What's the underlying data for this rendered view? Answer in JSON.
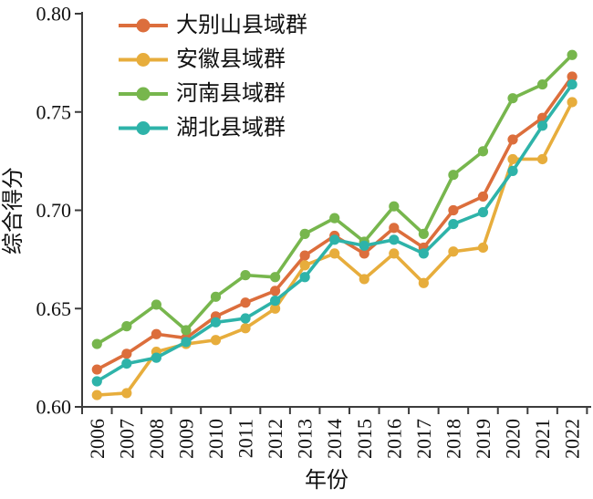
{
  "chart_data": {
    "type": "line",
    "title": "",
    "xlabel": "年份",
    "ylabel": "综合得分",
    "x": [
      "2006",
      "2007",
      "2008",
      "2009",
      "2010",
      "2011",
      "2012",
      "2013",
      "2014",
      "2015",
      "2016",
      "2017",
      "2018",
      "2019",
      "2020",
      "2021",
      "2022"
    ],
    "ylim": [
      0.6,
      0.8
    ],
    "yticks": [
      "0.60",
      "0.65",
      "0.70",
      "0.75",
      "0.80"
    ],
    "grid": false,
    "legend_position": "upper-left-inside",
    "marker": "circle",
    "axis_color": "#3c3c3c",
    "series": [
      {
        "name": "大别山县域群",
        "color": "#dc6e3c",
        "values": [
          0.619,
          0.627,
          0.637,
          0.635,
          0.646,
          0.653,
          0.659,
          0.677,
          0.687,
          0.678,
          0.691,
          0.681,
          0.7,
          0.707,
          0.736,
          0.747,
          0.768
        ]
      },
      {
        "name": "安徽县域群",
        "color": "#e7ad3c",
        "values": [
          0.606,
          0.607,
          0.628,
          0.632,
          0.634,
          0.64,
          0.65,
          0.672,
          0.678,
          0.665,
          0.678,
          0.663,
          0.679,
          0.681,
          0.726,
          0.726,
          0.755
        ]
      },
      {
        "name": "河南县域群",
        "color": "#77b64d",
        "values": [
          0.632,
          0.641,
          0.652,
          0.639,
          0.656,
          0.667,
          0.666,
          0.688,
          0.696,
          0.684,
          0.702,
          0.688,
          0.718,
          0.73,
          0.757,
          0.764,
          0.779
        ]
      },
      {
        "name": "湖北县域群",
        "color": "#2eb3a9",
        "values": [
          0.613,
          0.622,
          0.625,
          0.633,
          0.643,
          0.645,
          0.654,
          0.666,
          0.685,
          0.682,
          0.685,
          0.678,
          0.693,
          0.699,
          0.72,
          0.743,
          0.764
        ]
      }
    ]
  }
}
